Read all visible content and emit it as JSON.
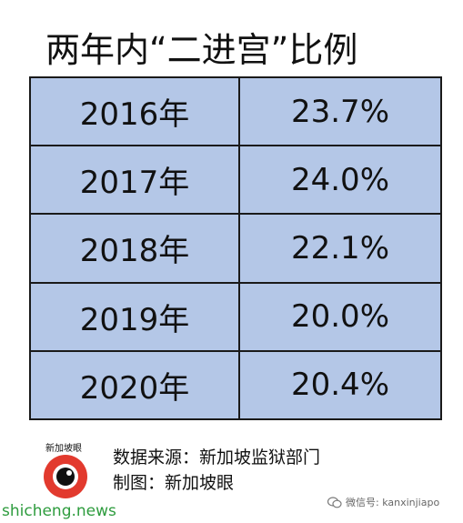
{
  "title": "两年内“二进宫”比例",
  "chart_data": {
    "type": "table",
    "title": "两年内“二进宫”比例",
    "rows": [
      {
        "year": "2016年",
        "value": 23.7,
        "label": "23.7%"
      },
      {
        "year": "2017年",
        "value": 24.0,
        "label": "24.0%"
      },
      {
        "year": "2018年",
        "value": 22.1,
        "label": "22.1%"
      },
      {
        "year": "2019年",
        "value": 20.0,
        "label": "20.0%"
      },
      {
        "year": "2020年",
        "value": 20.4,
        "label": "20.4%"
      }
    ]
  },
  "colors": {
    "cell_fill": "#b4c7e7",
    "border": "#1a1a1a",
    "logo_red": "#e23a2e",
    "site_green": "#2e9c3e"
  },
  "footer": {
    "logo_text": "新加坡眼",
    "source_line": "数据来源：新加坡监狱部门",
    "credit_line": "制图：新加坡眼",
    "site": "shicheng.news",
    "wechat": "微信号: kanxinjiapo"
  }
}
